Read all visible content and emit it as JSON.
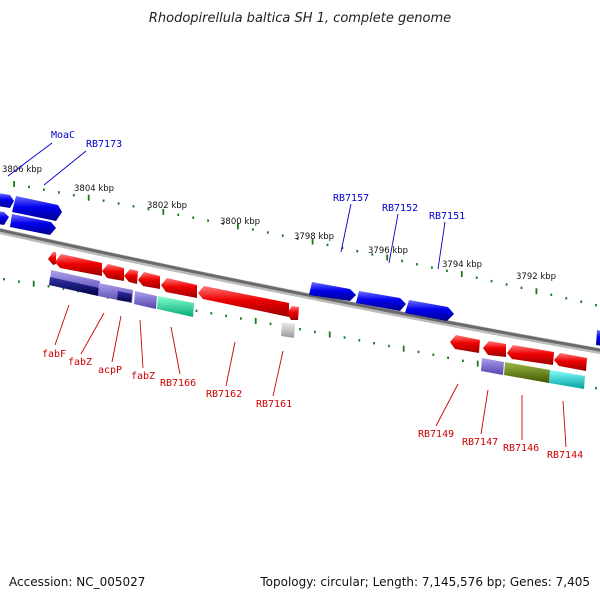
{
  "title": "Rhodopirellula baltica SH 1, complete genome",
  "footer": {
    "accession": "Accession: NC_005027",
    "summary": "Topology: circular; Length: 7,145,576 bp; Genes: 7,405"
  },
  "scale_labels": [
    "3806 kbp",
    "3804 kbp",
    "3802 kbp",
    "3800 kbp",
    "3798 kbp",
    "3796 kbp",
    "3794 kbp",
    "3792 kbp"
  ],
  "top_labels": [
    "MoaC",
    "RB7173",
    "RB7157",
    "RB7152",
    "RB7151"
  ],
  "bottom_labels": [
    "fabF",
    "fabZ",
    "acpP",
    "fabZ",
    "RB7166",
    "RB7162",
    "RB7161",
    "RB7149",
    "RB7147",
    "RB7146",
    "RB7144"
  ],
  "colors": {
    "forward_gene": "#0000ee",
    "reverse_gene": "#ee0000",
    "scale_ticks": "#1a7a1a",
    "backbone": "#888888",
    "cog_navy": "#000066",
    "cog_lavender": "#7766cc",
    "cog_teal": "#11dd99",
    "cog_olive": "#668811",
    "cog_cyan": "#11cccc",
    "cog_grey": "#bbbbbb"
  }
}
